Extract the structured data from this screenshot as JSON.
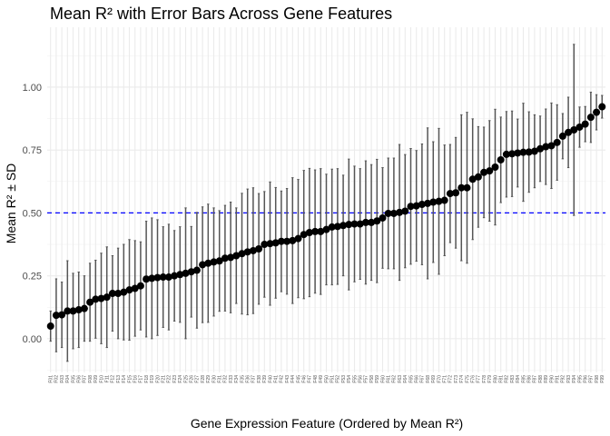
{
  "chart_data": {
    "type": "scatter",
    "title": "Mean R² with Error Bars Across Gene Features",
    "xlabel": "Gene Expression Feature (Ordered by Mean R²)",
    "ylabel": "Mean R² ± SD",
    "ylim": [
      -0.134,
      1.238
    ],
    "yticks": [
      0,
      0.25,
      0.5,
      0.75,
      1.0
    ],
    "ytick_labels": [
      "0.00",
      "0.25",
      "0.50",
      "0.75",
      "1.00"
    ],
    "reference_line": {
      "y": 0.5,
      "color": "#0000FF",
      "style": "dashed"
    },
    "grid": true,
    "point_color": "#000000",
    "errorbar_color": "#555555",
    "means": [
      0.05,
      0.093,
      0.095,
      0.11,
      0.11,
      0.115,
      0.12,
      0.145,
      0.157,
      0.16,
      0.165,
      0.18,
      0.18,
      0.185,
      0.194,
      0.2,
      0.21,
      0.237,
      0.24,
      0.243,
      0.245,
      0.245,
      0.25,
      0.255,
      0.26,
      0.266,
      0.272,
      0.294,
      0.3,
      0.305,
      0.309,
      0.32,
      0.323,
      0.33,
      0.338,
      0.345,
      0.35,
      0.357,
      0.375,
      0.378,
      0.381,
      0.387,
      0.387,
      0.39,
      0.398,
      0.414,
      0.422,
      0.426,
      0.426,
      0.434,
      0.444,
      0.446,
      0.45,
      0.454,
      0.456,
      0.456,
      0.462,
      0.462,
      0.468,
      0.48,
      0.498,
      0.498,
      0.502,
      0.507,
      0.526,
      0.528,
      0.534,
      0.538,
      0.543,
      0.546,
      0.55,
      0.577,
      0.58,
      0.6,
      0.6,
      0.634,
      0.643,
      0.661,
      0.667,
      0.682,
      0.711,
      0.733,
      0.735,
      0.738,
      0.741,
      0.742,
      0.745,
      0.755,
      0.763,
      0.767,
      0.78,
      0.805,
      0.82,
      0.83,
      0.841,
      0.853,
      0.88,
      0.9,
      0.922
    ],
    "sds": [
      0.06,
      0.145,
      0.13,
      0.2,
      0.15,
      0.15,
      0.13,
      0.155,
      0.155,
      0.18,
      0.2,
      0.15,
      0.18,
      0.19,
      0.2,
      0.19,
      0.175,
      0.23,
      0.24,
      0.23,
      0.2,
      0.21,
      0.18,
      0.19,
      0.26,
      0.18,
      0.23,
      0.23,
      0.235,
      0.215,
      0.2,
      0.21,
      0.22,
      0.19,
      0.24,
      0.25,
      0.25,
      0.22,
      0.21,
      0.245,
      0.22,
      0.2,
      0.21,
      0.25,
      0.235,
      0.255,
      0.255,
      0.245,
      0.25,
      0.22,
      0.23,
      0.23,
      0.2,
      0.26,
      0.23,
      0.22,
      0.245,
      0.23,
      0.245,
      0.2,
      0.22,
      0.22,
      0.27,
      0.225,
      0.23,
      0.22,
      0.24,
      0.3,
      0.24,
      0.29,
      0.22,
      0.195,
      0.22,
      0.29,
      0.3,
      0.24,
      0.2,
      0.18,
      0.2,
      0.23,
      0.17,
      0.17,
      0.17,
      0.135,
      0.195,
      0.16,
      0.145,
      0.13,
      0.15,
      0.17,
      0.15,
      0.09,
      0.14,
      0.34,
      0.08,
      0.07,
      0.1,
      0.07,
      0.045
    ],
    "categories": [
      "F01",
      "F02",
      "F03",
      "F04",
      "F05",
      "F06",
      "F07",
      "F08",
      "F09",
      "F10",
      "F11",
      "F12",
      "F13",
      "F14",
      "F15",
      "F16",
      "F17",
      "F18",
      "F19",
      "F20",
      "F21",
      "F22",
      "F23",
      "F24",
      "F25",
      "F26",
      "F27",
      "F28",
      "F29",
      "F30",
      "F31",
      "F32",
      "F33",
      "F34",
      "F35",
      "F36",
      "F37",
      "F38",
      "F39",
      "F40",
      "F41",
      "F42",
      "F43",
      "F44",
      "F45",
      "F46",
      "F47",
      "F48",
      "F49",
      "F50",
      "F51",
      "F52",
      "F53",
      "F54",
      "F55",
      "F56",
      "F57",
      "F58",
      "F59",
      "F60",
      "F61",
      "F62",
      "F63",
      "F64",
      "F65",
      "F66",
      "F67",
      "F68",
      "F69",
      "F70",
      "F71",
      "F72",
      "F73",
      "F74",
      "F75",
      "F76",
      "F77",
      "F78",
      "F79",
      "F80",
      "F81",
      "F82",
      "F83",
      "F84",
      "F85",
      "F86",
      "F87",
      "F88",
      "F89",
      "F90",
      "F91",
      "F92",
      "F93",
      "F94",
      "F95",
      "F96",
      "F97",
      "F98",
      "F99"
    ]
  }
}
